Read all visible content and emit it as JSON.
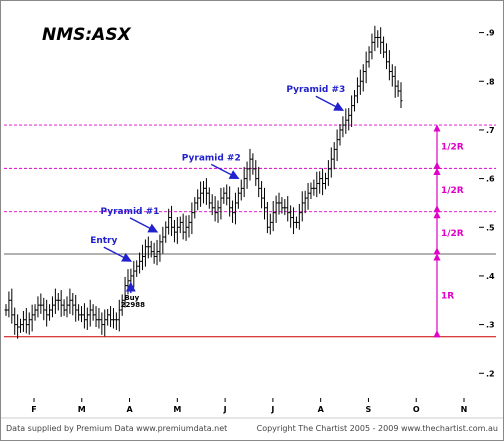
{
  "chart_data": {
    "type": "bar",
    "subtype": "ohlc-price-chart",
    "title": "NMS:ASX",
    "x_months": [
      "F",
      "M",
      "A",
      "M",
      "J",
      "J",
      "A",
      "S",
      "O",
      "N"
    ],
    "y_ticks": [
      ".2",
      ".3",
      ".4",
      ".5",
      ".6",
      ".7",
      ".8",
      ".9"
    ],
    "y_tick_values": [
      0.2,
      0.3,
      0.4,
      0.5,
      0.6,
      0.7,
      0.8,
      0.9
    ],
    "ylim": [
      0.18,
      0.93
    ],
    "grid": false,
    "close_series": [
      0.33,
      0.35,
      0.32,
      0.3,
      0.295,
      0.3,
      0.31,
      0.3,
      0.31,
      0.32,
      0.33,
      0.34,
      0.34,
      0.33,
      0.32,
      0.33,
      0.34,
      0.35,
      0.35,
      0.34,
      0.33,
      0.34,
      0.35,
      0.34,
      0.33,
      0.32,
      0.32,
      0.31,
      0.32,
      0.33,
      0.32,
      0.31,
      0.31,
      0.3,
      0.31,
      0.32,
      0.31,
      0.31,
      0.31,
      0.33,
      0.35,
      0.38,
      0.39,
      0.4,
      0.41,
      0.42,
      0.43,
      0.44,
      0.46,
      0.46,
      0.45,
      0.44,
      0.45,
      0.47,
      0.48,
      0.5,
      0.52,
      0.5,
      0.49,
      0.5,
      0.51,
      0.49,
      0.5,
      0.51,
      0.53,
      0.55,
      0.56,
      0.57,
      0.58,
      0.57,
      0.55,
      0.54,
      0.53,
      0.54,
      0.56,
      0.57,
      0.56,
      0.54,
      0.53,
      0.55,
      0.57,
      0.58,
      0.6,
      0.62,
      0.64,
      0.62,
      0.6,
      0.58,
      0.56,
      0.54,
      0.5,
      0.51,
      0.53,
      0.55,
      0.55,
      0.54,
      0.54,
      0.53,
      0.52,
      0.51,
      0.51,
      0.53,
      0.55,
      0.56,
      0.57,
      0.58,
      0.58,
      0.59,
      0.6,
      0.59,
      0.6,
      0.62,
      0.64,
      0.66,
      0.68,
      0.7,
      0.71,
      0.72,
      0.73,
      0.75,
      0.77,
      0.79,
      0.8,
      0.82,
      0.84,
      0.86,
      0.88,
      0.89,
      0.89,
      0.88,
      0.86,
      0.84,
      0.82,
      0.81,
      0.79,
      0.78,
      0.76
    ],
    "horizontal_levels": [
      {
        "value": 0.275,
        "style": "solid",
        "color": "#cc0000"
      },
      {
        "value": 0.445,
        "style": "solid",
        "color": "#666666"
      },
      {
        "value": 0.532,
        "style": "dashed",
        "color": "#e000c8"
      },
      {
        "value": 0.621,
        "style": "dashed",
        "color": "#e000c8"
      },
      {
        "value": 0.71,
        "style": "dashed",
        "color": "#e000c8"
      }
    ],
    "r_labels": [
      {
        "label": "1/2R",
        "from": 0.621,
        "to": 0.71
      },
      {
        "label": "1/2R",
        "from": 0.532,
        "to": 0.621
      },
      {
        "label": "1/2R",
        "from": 0.445,
        "to": 0.532
      },
      {
        "label": "1R",
        "from": 0.275,
        "to": 0.445
      }
    ],
    "annotations": [
      {
        "label": "Entry",
        "index": 44
      },
      {
        "label": "Pyramid #1",
        "index": 53
      },
      {
        "label": "Pyramid #2",
        "index": 81
      },
      {
        "label": "Pyramid #3",
        "index": 117
      }
    ],
    "buy_label": "Buy",
    "buy_date": "22988",
    "colors": {
      "bars": "#000000",
      "annotation": "#2222cc",
      "levels": "#e000c8",
      "stop": "#cc0000"
    }
  },
  "footer": {
    "left": "Data supplied by Premium Data www.premiumdata.net",
    "right": "Copyright The Chartist 2005 - 2009  www.thechartist.com.au"
  }
}
